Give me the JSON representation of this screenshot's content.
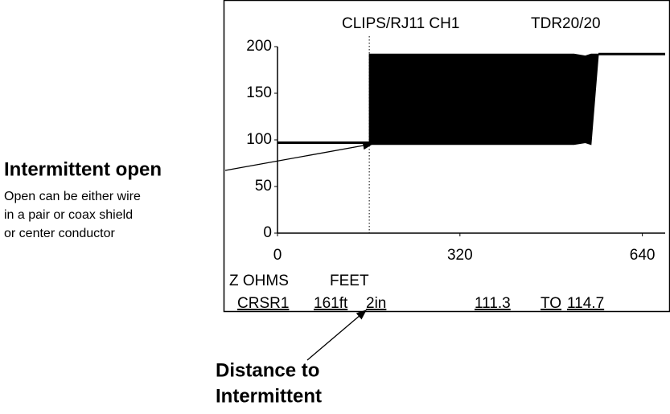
{
  "chart_data": {
    "type": "line",
    "header": {
      "left": "CLIPS/RJ11 CH1",
      "right": "TDR20/20"
    },
    "xlim": [
      0,
      680
    ],
    "xticks": [
      0,
      320,
      640
    ],
    "ylim": [
      0,
      200
    ],
    "yticks": [
      0,
      50,
      100,
      150,
      200
    ],
    "color": "#000000",
    "lines": [
      {
        "x": [
          0,
          161
        ],
        "values": [
          97,
          97
        ]
      },
      {
        "x": [
          563,
          680
        ],
        "values": [
          192,
          192
        ]
      }
    ],
    "band": {
      "x": [
        161,
        520,
        540,
        550,
        563
      ],
      "upper": [
        192,
        192,
        190,
        192,
        192
      ],
      "lower": [
        95,
        95,
        97,
        95,
        192
      ]
    },
    "cursor": {
      "value": 161,
      "label": "161ft"
    },
    "footer": {
      "y_unit": "Z OHMS",
      "x_unit": "FEET",
      "cursor_name": "CRSR1",
      "inches": "2in",
      "from": "111.3",
      "to_word": "TO",
      "to": "114.7"
    },
    "annotations": {
      "open_title": "Intermittent open",
      "open_text": [
        "Open can be either wire",
        "in a pair or coax shield",
        "or center conductor"
      ],
      "distance": [
        "Distance to",
        "Intermittent"
      ]
    }
  }
}
